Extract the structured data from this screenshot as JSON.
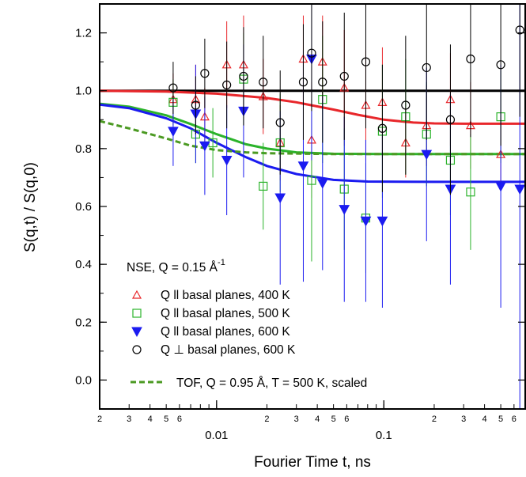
{
  "chart_data": {
    "type": "scatter",
    "title": "",
    "xlabel": "Fourier Time t, ns",
    "ylabel": "S(q,t) / S(q,0)",
    "xscale": "log",
    "xlim": [
      0.002,
      0.7
    ],
    "ylim": [
      -0.1,
      1.3
    ],
    "grid": false,
    "legend_position": "lower-left",
    "legend_title": "NSE, Q = 0.15 Å",
    "legend_title_sup": "-1",
    "y_ticks": [
      "0.0",
      "0.2",
      "0.4",
      "0.6",
      "0.8",
      "1.0",
      "1.2"
    ],
    "x_major_ticks": [
      {
        "value": 0.01,
        "label": "0.01"
      },
      {
        "value": 0.1,
        "label": "0.1"
      }
    ],
    "x_minor_ticks": [
      {
        "value": 0.002,
        "label": "2"
      },
      {
        "value": 0.003,
        "label": "3"
      },
      {
        "value": 0.004,
        "label": "4"
      },
      {
        "value": 0.005,
        "label": "5"
      },
      {
        "value": 0.006,
        "label": "6"
      },
      {
        "value": 0.02,
        "label": "2"
      },
      {
        "value": 0.03,
        "label": "3"
      },
      {
        "value": 0.04,
        "label": "4"
      },
      {
        "value": 0.05,
        "label": "5"
      },
      {
        "value": 0.06,
        "label": "6"
      },
      {
        "value": 0.2,
        "label": "2"
      },
      {
        "value": 0.3,
        "label": "3"
      },
      {
        "value": 0.4,
        "label": "4"
      },
      {
        "value": 0.5,
        "label": "5"
      },
      {
        "value": 0.6,
        "label": "6"
      }
    ],
    "series": [
      {
        "name": "Q ll basal planes, 400 K",
        "marker": "triangle-open",
        "color": "#e8262a",
        "points": [
          {
            "x": 0.0055,
            "y": 0.97,
            "err": 0.09
          },
          {
            "x": 0.0075,
            "y": 0.97,
            "err": 0.12
          },
          {
            "x": 0.0085,
            "y": 0.91,
            "err": 0.1
          },
          {
            "x": 0.0115,
            "y": 1.09,
            "err": 0.15
          },
          {
            "x": 0.0145,
            "y": 1.09,
            "err": 0.17
          },
          {
            "x": 0.019,
            "y": 0.98,
            "err": 0.13
          },
          {
            "x": 0.024,
            "y": 0.82,
            "err": 0.13
          },
          {
            "x": 0.033,
            "y": 1.11,
            "err": 0.15
          },
          {
            "x": 0.037,
            "y": 0.83,
            "err": 0.2
          },
          {
            "x": 0.043,
            "y": 1.1,
            "err": 0.16
          },
          {
            "x": 0.058,
            "y": 1.01,
            "err": 0.2
          },
          {
            "x": 0.078,
            "y": 0.95,
            "err": 0.19
          },
          {
            "x": 0.098,
            "y": 0.96,
            "err": 0.19
          },
          {
            "x": 0.135,
            "y": 0.82,
            "err": 0.12
          },
          {
            "x": 0.18,
            "y": 0.88,
            "err": 0.14
          },
          {
            "x": 0.25,
            "y": 0.97,
            "err": 0.16
          },
          {
            "x": 0.33,
            "y": 0.88,
            "err": 0.15
          },
          {
            "x": 0.5,
            "y": 0.78,
            "err": 0.12
          }
        ]
      },
      {
        "name": "Q ll basal planes, 500 K",
        "marker": "square-open",
        "color": "#2bb32b",
        "points": [
          {
            "x": 0.0055,
            "y": 0.96,
            "err": 0.08
          },
          {
            "x": 0.0075,
            "y": 0.85,
            "err": 0.1
          },
          {
            "x": 0.0095,
            "y": 0.82,
            "err": 0.12
          },
          {
            "x": 0.0145,
            "y": 1.04,
            "err": 0.16
          },
          {
            "x": 0.019,
            "y": 0.67,
            "err": 0.15
          },
          {
            "x": 0.024,
            "y": 0.82,
            "err": 0.17
          },
          {
            "x": 0.037,
            "y": 0.69,
            "err": 0.28
          },
          {
            "x": 0.043,
            "y": 0.97,
            "err": 0.22
          },
          {
            "x": 0.058,
            "y": 0.66,
            "err": 0.21
          },
          {
            "x": 0.078,
            "y": 0.56,
            "err": 0.19
          },
          {
            "x": 0.098,
            "y": 0.86,
            "err": 0.23
          },
          {
            "x": 0.135,
            "y": 0.91,
            "err": 0.2
          },
          {
            "x": 0.18,
            "y": 0.85,
            "err": 0.18
          },
          {
            "x": 0.25,
            "y": 0.76,
            "err": 0.19
          },
          {
            "x": 0.33,
            "y": 0.65,
            "err": 0.2
          },
          {
            "x": 0.5,
            "y": 0.91,
            "err": 0.16
          }
        ]
      },
      {
        "name": "Q ll basal planes, 600 K",
        "marker": "triangle-down-filled",
        "color": "#1b1bf0",
        "points": [
          {
            "x": 0.0055,
            "y": 0.86,
            "err": 0.12
          },
          {
            "x": 0.0075,
            "y": 0.92,
            "err": 0.17
          },
          {
            "x": 0.0085,
            "y": 0.81,
            "err": 0.17
          },
          {
            "x": 0.0115,
            "y": 0.76,
            "err": 0.19
          },
          {
            "x": 0.0145,
            "y": 0.93,
            "err": 0.23
          },
          {
            "x": 0.024,
            "y": 0.63,
            "err": 0.3
          },
          {
            "x": 0.033,
            "y": 0.74,
            "err": 0.4
          },
          {
            "x": 0.037,
            "y": 1.11,
            "err": 0.35
          },
          {
            "x": 0.043,
            "y": 0.68,
            "err": 0.3
          },
          {
            "x": 0.058,
            "y": 0.59,
            "err": 0.32
          },
          {
            "x": 0.078,
            "y": 0.55,
            "err": 0.28
          },
          {
            "x": 0.098,
            "y": 0.55,
            "err": 0.3
          },
          {
            "x": 0.18,
            "y": 0.78,
            "err": 0.3
          },
          {
            "x": 0.25,
            "y": 0.66,
            "err": 0.33
          },
          {
            "x": 0.5,
            "y": 0.67,
            "err": 0.42
          },
          {
            "x": 0.65,
            "y": 0.66,
            "err": 0.82
          }
        ]
      },
      {
        "name": "Q ⊥ basal planes, 600 K",
        "marker": "circle-open",
        "color": "#000000",
        "points": [
          {
            "x": 0.0055,
            "y": 1.01,
            "err": 0.09
          },
          {
            "x": 0.0075,
            "y": 0.95,
            "err": 0.1
          },
          {
            "x": 0.0085,
            "y": 1.06,
            "err": 0.12
          },
          {
            "x": 0.0115,
            "y": 1.02,
            "err": 0.15
          },
          {
            "x": 0.0145,
            "y": 1.05,
            "err": 0.17
          },
          {
            "x": 0.019,
            "y": 1.03,
            "err": 0.16
          },
          {
            "x": 0.024,
            "y": 0.89,
            "err": 0.18
          },
          {
            "x": 0.033,
            "y": 1.03,
            "err": 0.2
          },
          {
            "x": 0.037,
            "y": 1.13,
            "err": 0.2
          },
          {
            "x": 0.043,
            "y": 1.03,
            "err": 0.21
          },
          {
            "x": 0.058,
            "y": 1.05,
            "err": 0.22
          },
          {
            "x": 0.078,
            "y": 1.1,
            "err": 0.23
          },
          {
            "x": 0.098,
            "y": 0.87,
            "err": 0.22
          },
          {
            "x": 0.135,
            "y": 0.95,
            "err": 0.24
          },
          {
            "x": 0.18,
            "y": 1.08,
            "err": 0.25
          },
          {
            "x": 0.25,
            "y": 0.9,
            "err": 0.26
          },
          {
            "x": 0.33,
            "y": 1.11,
            "err": 0.27
          },
          {
            "x": 0.5,
            "y": 1.09,
            "err": 0.28
          },
          {
            "x": 0.65,
            "y": 1.21,
            "err": 0.3
          }
        ]
      }
    ],
    "fit_lines": [
      {
        "color": "#000000",
        "style": "solid",
        "points": [
          {
            "x": 0.002,
            "y": 1.0
          },
          {
            "x": 0.7,
            "y": 1.0
          }
        ]
      },
      {
        "color": "#e8262a",
        "style": "solid",
        "points": [
          {
            "x": 0.002,
            "y": 1.0
          },
          {
            "x": 0.005,
            "y": 0.997
          },
          {
            "x": 0.01,
            "y": 0.99
          },
          {
            "x": 0.02,
            "y": 0.975
          },
          {
            "x": 0.03,
            "y": 0.96
          },
          {
            "x": 0.05,
            "y": 0.935
          },
          {
            "x": 0.07,
            "y": 0.917
          },
          {
            "x": 0.1,
            "y": 0.9
          },
          {
            "x": 0.15,
            "y": 0.89
          },
          {
            "x": 0.2,
            "y": 0.887
          },
          {
            "x": 0.3,
            "y": 0.886
          },
          {
            "x": 0.7,
            "y": 0.886
          }
        ]
      },
      {
        "color": "#2bb32b",
        "style": "solid",
        "points": [
          {
            "x": 0.002,
            "y": 0.955
          },
          {
            "x": 0.003,
            "y": 0.945
          },
          {
            "x": 0.005,
            "y": 0.915
          },
          {
            "x": 0.007,
            "y": 0.885
          },
          {
            "x": 0.01,
            "y": 0.85
          },
          {
            "x": 0.015,
            "y": 0.815
          },
          {
            "x": 0.02,
            "y": 0.8
          },
          {
            "x": 0.03,
            "y": 0.787
          },
          {
            "x": 0.05,
            "y": 0.782
          },
          {
            "x": 0.1,
            "y": 0.781
          },
          {
            "x": 0.7,
            "y": 0.781
          }
        ]
      },
      {
        "color": "#1b1bf0",
        "style": "solid",
        "points": [
          {
            "x": 0.002,
            "y": 0.952
          },
          {
            "x": 0.003,
            "y": 0.94
          },
          {
            "x": 0.005,
            "y": 0.905
          },
          {
            "x": 0.007,
            "y": 0.87
          },
          {
            "x": 0.01,
            "y": 0.82
          },
          {
            "x": 0.015,
            "y": 0.77
          },
          {
            "x": 0.02,
            "y": 0.74
          },
          {
            "x": 0.03,
            "y": 0.712
          },
          {
            "x": 0.05,
            "y": 0.692
          },
          {
            "x": 0.08,
            "y": 0.686
          },
          {
            "x": 0.2,
            "y": 0.685
          },
          {
            "x": 0.7,
            "y": 0.685
          }
        ]
      },
      {
        "color": "#4b9a22",
        "style": "dashed",
        "points": [
          {
            "x": 0.002,
            "y": 0.895
          },
          {
            "x": 0.003,
            "y": 0.87
          },
          {
            "x": 0.005,
            "y": 0.835
          },
          {
            "x": 0.007,
            "y": 0.81
          },
          {
            "x": 0.01,
            "y": 0.795
          },
          {
            "x": 0.015,
            "y": 0.787
          },
          {
            "x": 0.02,
            "y": 0.784
          },
          {
            "x": 0.05,
            "y": 0.781
          },
          {
            "x": 0.7,
            "y": 0.781
          }
        ]
      }
    ],
    "tof_legend": {
      "label": "TOF, Q = 0.95 Å, T = 500 K, scaled",
      "color": "#4b9a22"
    }
  }
}
